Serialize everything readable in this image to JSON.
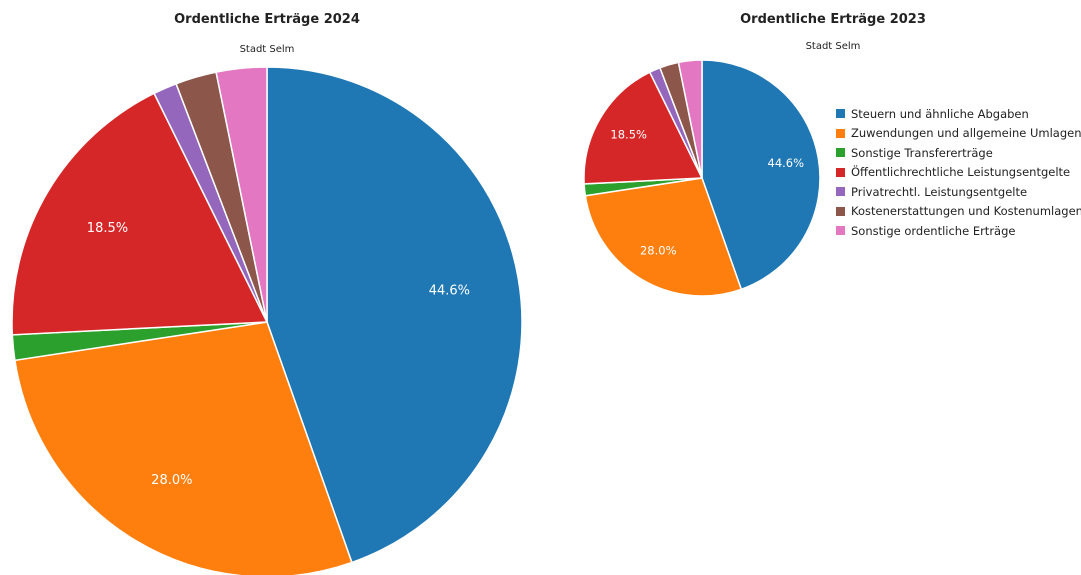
{
  "chart_data": [
    {
      "type": "pie",
      "title": "Ordentliche Erträge 2024",
      "subtitle": "Stadt Selm",
      "labels": [
        "Steuern und ähnliche Abgaben",
        "Zuwendungen und allgemeine Umlagen",
        "Sonstige Transfererträge",
        "Öffentlichrechtliche Leistungsentgelte",
        "Privatrechtl. Leistungsentgelte",
        "Kostenerstattungen und Kostenumlagen",
        "Sonstige ordentliche Erträge"
      ],
      "values": [
        44.6,
        28.0,
        1.6,
        18.5,
        1.5,
        2.6,
        3.2
      ],
      "value_labels": [
        "44.6%",
        "28.0%",
        "",
        "18.5%",
        "",
        "",
        ""
      ]
    },
    {
      "type": "pie",
      "title": "Ordentliche Erträge 2023",
      "subtitle": "Stadt Selm",
      "labels": [
        "Steuern und ähnliche Abgaben",
        "Zuwendungen und allgemeine Umlagen",
        "Sonstige Transfererträge",
        "Öffentlichrechtliche Leistungsentgelte",
        "Privatrechtl. Leistungsentgelte",
        "Kostenerstattungen und Kostenumlagen",
        "Sonstige ordentliche Erträge"
      ],
      "values": [
        44.6,
        28.0,
        1.6,
        18.5,
        1.5,
        2.6,
        3.2
      ],
      "value_labels": [
        "44.6%",
        "28.0%",
        "",
        "18.5%",
        "",
        "",
        ""
      ]
    }
  ],
  "legend": {
    "placement": "right",
    "items": [
      {
        "label": "Steuern und ähnliche Abgaben",
        "color": "#1f77b4"
      },
      {
        "label": "Zuwendungen und allgemeine Umlagen",
        "color": "#ff7f0e"
      },
      {
        "label": "Sonstige Transfererträge",
        "color": "#2ca02c"
      },
      {
        "label": "Öffentlichrechtliche Leistungsentgelte",
        "color": "#d62728"
      },
      {
        "label": "Privatrechtl. Leistungsentgelte",
        "color": "#9467bd"
      },
      {
        "label": "Kostenerstattungen und Kostenumlagen",
        "color": "#8c564b"
      },
      {
        "label": "Sonstige ordentliche Erträge",
        "color": "#e377c2"
      }
    ]
  }
}
